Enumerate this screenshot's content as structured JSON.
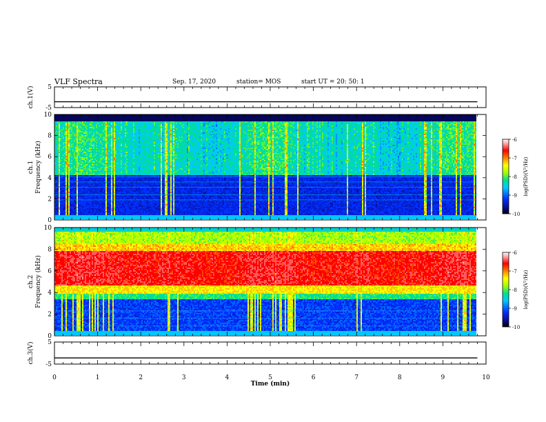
{
  "header": {
    "title": "VLF Spectra",
    "date": "Sep. 17, 2020",
    "station": "station= MOS",
    "start": "start  UT  =   20: 50: 1"
  },
  "chart_data": [
    {
      "type": "line",
      "panel": "ch1-waveform",
      "ylabel": "ch.1(V)",
      "ylim": [
        -5,
        5
      ],
      "yticks": [
        5,
        -5
      ],
      "xlim": [
        0,
        10
      ],
      "series": [
        {
          "x": [
            0,
            9.8
          ],
          "values": [
            -2.2,
            -2.2
          ]
        }
      ]
    },
    {
      "type": "heatmap",
      "panel": "ch1-spectrogram",
      "ylabel": "ch.1",
      "ylabel2": "Frequency (kHz)",
      "ylim": [
        0,
        10
      ],
      "yticks": [
        "0",
        "2",
        "4",
        "6",
        "8",
        "10"
      ],
      "xlim": [
        0,
        9.8
      ],
      "colorbar": {
        "label": "log(PSD)(V²/Hz)",
        "range": [
          -10,
          -6
        ],
        "ticks": [
          "-6",
          "-7",
          "-8",
          "-9",
          "-10"
        ]
      }
    },
    {
      "type": "heatmap",
      "panel": "ch2-spectrogram",
      "ylabel": "ch.2",
      "ylabel2": "Frequency (kHz)",
      "ylim": [
        0,
        10
      ],
      "yticks": [
        "0",
        "2",
        "4",
        "6",
        "8",
        "10"
      ],
      "xlim": [
        0,
        9.8
      ],
      "colorbar": {
        "label": "log(PSD)(V²/Hz)",
        "range": [
          -10,
          -6
        ],
        "ticks": [
          "-6",
          "-7",
          "-8",
          "-9",
          "-10"
        ]
      }
    },
    {
      "type": "line",
      "panel": "ch3-waveform",
      "ylabel": "ch.3(V)",
      "ylim": [
        -5,
        5
      ],
      "yticks": [
        5,
        -5
      ],
      "xlim": [
        0,
        10
      ],
      "xlabel": "Time  (min)",
      "xticks": [
        "0",
        "1",
        "2",
        "3",
        "4",
        "5",
        "6",
        "7",
        "8",
        "9",
        "10"
      ],
      "series": [
        {
          "x": [
            0,
            9.8
          ],
          "values": [
            -2.2,
            -2.2
          ]
        }
      ]
    }
  ]
}
